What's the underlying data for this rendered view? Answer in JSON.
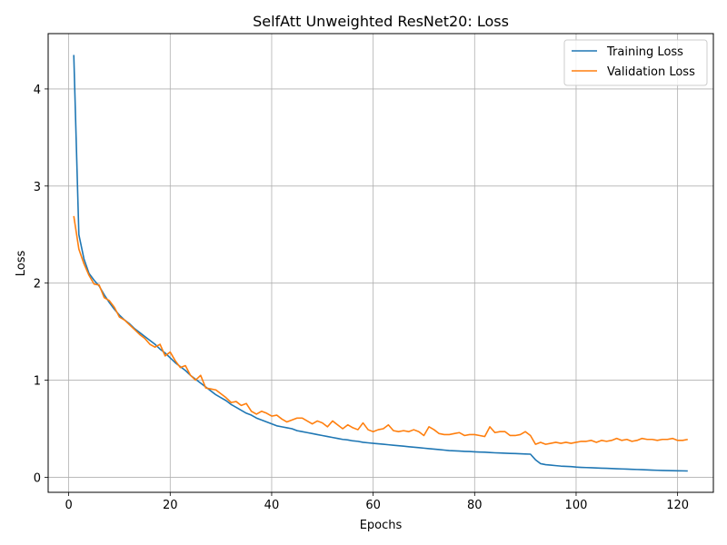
{
  "chart_data": {
    "type": "line",
    "title": "SelfAtt Unweighted ResNet20: Loss",
    "xlabel": "Epochs",
    "ylabel": "Loss",
    "xlim": [
      -4.05,
      127.05
    ],
    "ylim": [
      -0.155,
      4.57
    ],
    "xticks": [
      0,
      20,
      40,
      60,
      80,
      100,
      120
    ],
    "yticks": [
      0,
      1,
      2,
      3,
      4
    ],
    "grid": true,
    "legend_position": "top-right",
    "series": [
      {
        "name": "Training Loss",
        "color": "#1f77b4",
        "x": [
          1,
          2,
          3,
          4,
          5,
          6,
          7,
          8,
          9,
          10,
          11,
          12,
          13,
          14,
          15,
          16,
          17,
          18,
          19,
          20,
          21,
          22,
          23,
          24,
          25,
          26,
          27,
          28,
          29,
          30,
          31,
          32,
          33,
          34,
          35,
          36,
          37,
          38,
          39,
          40,
          41,
          42,
          43,
          44,
          45,
          46,
          47,
          48,
          49,
          50,
          51,
          52,
          53,
          54,
          55,
          56,
          57,
          58,
          59,
          60,
          61,
          62,
          63,
          64,
          65,
          66,
          67,
          68,
          69,
          70,
          71,
          72,
          73,
          74,
          75,
          76,
          77,
          78,
          79,
          80,
          81,
          82,
          83,
          84,
          85,
          86,
          87,
          88,
          89,
          90,
          91,
          92,
          93,
          94,
          95,
          96,
          97,
          98,
          99,
          100,
          101,
          102,
          103,
          104,
          105,
          106,
          107,
          108,
          109,
          110,
          111,
          112,
          113,
          114,
          115,
          116,
          117,
          118,
          119,
          120,
          121,
          122
        ],
        "y": [
          4.35,
          2.5,
          2.25,
          2.1,
          2.03,
          1.97,
          1.88,
          1.8,
          1.73,
          1.67,
          1.62,
          1.58,
          1.53,
          1.49,
          1.45,
          1.41,
          1.37,
          1.32,
          1.28,
          1.23,
          1.18,
          1.14,
          1.1,
          1.05,
          1.01,
          0.97,
          0.93,
          0.89,
          0.85,
          0.82,
          0.79,
          0.75,
          0.72,
          0.69,
          0.66,
          0.64,
          0.61,
          0.59,
          0.57,
          0.55,
          0.53,
          0.52,
          0.51,
          0.5,
          0.48,
          0.47,
          0.46,
          0.45,
          0.44,
          0.43,
          0.42,
          0.41,
          0.4,
          0.39,
          0.385,
          0.375,
          0.37,
          0.36,
          0.355,
          0.35,
          0.345,
          0.34,
          0.335,
          0.33,
          0.325,
          0.32,
          0.315,
          0.31,
          0.305,
          0.3,
          0.295,
          0.29,
          0.285,
          0.28,
          0.275,
          0.272,
          0.27,
          0.267,
          0.265,
          0.262,
          0.26,
          0.258,
          0.255,
          0.252,
          0.25,
          0.248,
          0.246,
          0.244,
          0.242,
          0.24,
          0.238,
          0.18,
          0.14,
          0.13,
          0.125,
          0.12,
          0.115,
          0.112,
          0.11,
          0.105,
          0.102,
          0.1,
          0.098,
          0.096,
          0.094,
          0.092,
          0.09,
          0.088,
          0.086,
          0.084,
          0.082,
          0.08,
          0.078,
          0.076,
          0.074,
          0.072,
          0.07,
          0.069,
          0.068,
          0.067,
          0.066,
          0.065
        ]
      },
      {
        "name": "Validation Loss",
        "color": "#ff7f0e",
        "x": [
          1,
          2,
          3,
          4,
          5,
          6,
          7,
          8,
          9,
          10,
          11,
          12,
          13,
          14,
          15,
          16,
          17,
          18,
          19,
          20,
          21,
          22,
          23,
          24,
          25,
          26,
          27,
          28,
          29,
          30,
          31,
          32,
          33,
          34,
          35,
          36,
          37,
          38,
          39,
          40,
          41,
          42,
          43,
          44,
          45,
          46,
          47,
          48,
          49,
          50,
          51,
          52,
          53,
          54,
          55,
          56,
          57,
          58,
          59,
          60,
          61,
          62,
          63,
          64,
          65,
          66,
          67,
          68,
          69,
          70,
          71,
          72,
          73,
          74,
          75,
          76,
          77,
          78,
          79,
          80,
          81,
          82,
          83,
          84,
          85,
          86,
          87,
          88,
          89,
          90,
          91,
          92,
          93,
          94,
          95,
          96,
          97,
          98,
          99,
          100,
          101,
          102,
          103,
          104,
          105,
          106,
          107,
          108,
          109,
          110,
          111,
          112,
          113,
          114,
          115,
          116,
          117,
          118,
          119,
          120,
          121,
          122
        ],
        "y": [
          2.69,
          2.35,
          2.2,
          2.08,
          1.99,
          1.98,
          1.85,
          1.82,
          1.75,
          1.65,
          1.62,
          1.57,
          1.52,
          1.47,
          1.43,
          1.37,
          1.34,
          1.37,
          1.25,
          1.29,
          1.2,
          1.13,
          1.15,
          1.05,
          1.0,
          1.05,
          0.92,
          0.91,
          0.9,
          0.86,
          0.82,
          0.77,
          0.78,
          0.74,
          0.76,
          0.68,
          0.65,
          0.68,
          0.66,
          0.63,
          0.64,
          0.6,
          0.57,
          0.59,
          0.61,
          0.61,
          0.58,
          0.55,
          0.58,
          0.56,
          0.52,
          0.58,
          0.54,
          0.5,
          0.54,
          0.51,
          0.49,
          0.56,
          0.49,
          0.47,
          0.49,
          0.5,
          0.54,
          0.48,
          0.47,
          0.48,
          0.47,
          0.49,
          0.47,
          0.43,
          0.52,
          0.49,
          0.45,
          0.44,
          0.44,
          0.45,
          0.46,
          0.43,
          0.44,
          0.44,
          0.43,
          0.42,
          0.52,
          0.46,
          0.47,
          0.47,
          0.43,
          0.43,
          0.44,
          0.47,
          0.43,
          0.34,
          0.36,
          0.34,
          0.35,
          0.36,
          0.35,
          0.36,
          0.35,
          0.36,
          0.37,
          0.37,
          0.38,
          0.36,
          0.38,
          0.37,
          0.38,
          0.4,
          0.38,
          0.39,
          0.37,
          0.38,
          0.4,
          0.39,
          0.39,
          0.38,
          0.39,
          0.39,
          0.4,
          0.38,
          0.38,
          0.39
        ]
      }
    ]
  }
}
